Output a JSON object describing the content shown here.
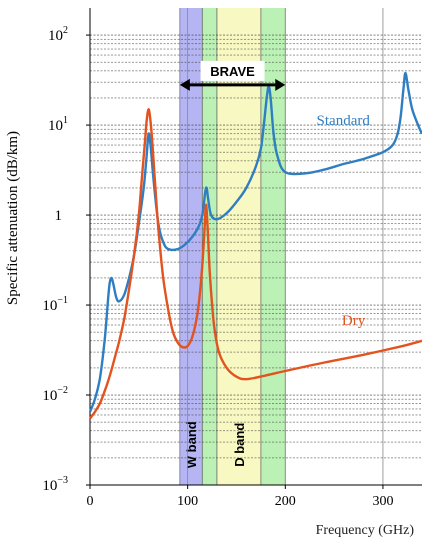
{
  "chart_data": {
    "type": "line",
    "title": "",
    "xlabel": "Frequency (GHz)",
    "ylabel": "Specific attenuation (dB/km)",
    "xlim": [
      0,
      340
    ],
    "ylim": [
      0.001,
      200
    ],
    "yscale": "log",
    "grid": "dashed horizontal minor, solid vertical major",
    "x_ticks": [
      {
        "value": 0,
        "label": "0"
      },
      {
        "value": 100,
        "label": "100"
      },
      {
        "value": 200,
        "label": "200"
      },
      {
        "value": 300,
        "label": "300"
      }
    ],
    "y_ticks": [
      {
        "value": 0.001,
        "base": "10",
        "exp": "−3"
      },
      {
        "value": 0.01,
        "base": "10",
        "exp": "−2"
      },
      {
        "value": 0.1,
        "base": "10",
        "exp": "−1"
      },
      {
        "value": 1,
        "base": "1",
        "exp": ""
      },
      {
        "value": 10,
        "base": "10",
        "exp": "1"
      },
      {
        "value": 100,
        "base": "10",
        "exp": "2"
      }
    ],
    "bands": [
      {
        "label": "W band",
        "x_range": [
          92,
          115
        ],
        "color": "#9c9cf0"
      },
      {
        "label": "",
        "x_range": [
          115,
          130
        ],
        "color": "#a6ec9c"
      },
      {
        "label": "D band",
        "x_range": [
          130,
          175
        ],
        "color": "#f6f5ae"
      },
      {
        "label": "",
        "x_range": [
          175,
          200
        ],
        "color": "#a6ec9c"
      }
    ],
    "annotation": {
      "label": "BRAVE",
      "x_range": [
        92,
        200
      ],
      "y": 40
    },
    "series": [
      {
        "name": "Standard",
        "color": "#2f7ec1",
        "label_at": [
          232,
          10
        ],
        "points": [
          [
            0,
            0.0065
          ],
          [
            5,
            0.009
          ],
          [
            10,
            0.015
          ],
          [
            15,
            0.04
          ],
          [
            18,
            0.1
          ],
          [
            20,
            0.17
          ],
          [
            22,
            0.2
          ],
          [
            24,
            0.17
          ],
          [
            27,
            0.12
          ],
          [
            30,
            0.11
          ],
          [
            35,
            0.13
          ],
          [
            40,
            0.2
          ],
          [
            45,
            0.35
          ],
          [
            50,
            0.8
          ],
          [
            55,
            2.0
          ],
          [
            58,
            4.5
          ],
          [
            60,
            8.0
          ],
          [
            62,
            6.0
          ],
          [
            65,
            2.5
          ],
          [
            70,
            0.8
          ],
          [
            75,
            0.5
          ],
          [
            80,
            0.42
          ],
          [
            90,
            0.42
          ],
          [
            100,
            0.5
          ],
          [
            110,
            0.7
          ],
          [
            115,
            1.0
          ],
          [
            118,
            1.8
          ],
          [
            119.5,
            2.0
          ],
          [
            121,
            1.5
          ],
          [
            124,
            1.0
          ],
          [
            130,
            0.9
          ],
          [
            140,
            1.05
          ],
          [
            150,
            1.4
          ],
          [
            160,
            2.0
          ],
          [
            170,
            3.5
          ],
          [
            175,
            5.5
          ],
          [
            178,
            10
          ],
          [
            181,
            20
          ],
          [
            183,
            27
          ],
          [
            185,
            20
          ],
          [
            188,
            8
          ],
          [
            192,
            4.5
          ],
          [
            200,
            3.0
          ],
          [
            220,
            2.9
          ],
          [
            240,
            3.2
          ],
          [
            260,
            3.7
          ],
          [
            280,
            4.2
          ],
          [
            300,
            5.0
          ],
          [
            310,
            6.0
          ],
          [
            315,
            8.0
          ],
          [
            318,
            12
          ],
          [
            321,
            25
          ],
          [
            323,
            38
          ],
          [
            326,
            25
          ],
          [
            330,
            15
          ],
          [
            336,
            10
          ],
          [
            340,
            8
          ]
        ]
      },
      {
        "name": "Dry",
        "color": "#e3531f",
        "label_at": [
          258,
          0.06
        ],
        "points": [
          [
            0,
            0.0055
          ],
          [
            5,
            0.0065
          ],
          [
            10,
            0.008
          ],
          [
            15,
            0.011
          ],
          [
            20,
            0.016
          ],
          [
            25,
            0.025
          ],
          [
            30,
            0.04
          ],
          [
            35,
            0.07
          ],
          [
            40,
            0.15
          ],
          [
            45,
            0.35
          ],
          [
            50,
            1.0
          ],
          [
            53,
            2.5
          ],
          [
            56,
            6.0
          ],
          [
            58,
            11
          ],
          [
            60,
            15
          ],
          [
            62,
            11
          ],
          [
            64,
            6.0
          ],
          [
            67,
            2.0
          ],
          [
            70,
            0.7
          ],
          [
            75,
            0.2
          ],
          [
            80,
            0.09
          ],
          [
            85,
            0.05
          ],
          [
            90,
            0.038
          ],
          [
            95,
            0.034
          ],
          [
            100,
            0.035
          ],
          [
            105,
            0.045
          ],
          [
            110,
            0.08
          ],
          [
            114,
            0.2
          ],
          [
            117,
            0.6
          ],
          [
            118.75,
            1.3
          ],
          [
            120.5,
            0.7
          ],
          [
            123,
            0.2
          ],
          [
            127,
            0.06
          ],
          [
            132,
            0.03
          ],
          [
            140,
            0.02
          ],
          [
            150,
            0.016
          ],
          [
            160,
            0.015
          ],
          [
            180,
            0.0165
          ],
          [
            200,
            0.0185
          ],
          [
            240,
            0.023
          ],
          [
            280,
            0.028
          ],
          [
            320,
            0.035
          ],
          [
            340,
            0.04
          ]
        ]
      }
    ]
  }
}
